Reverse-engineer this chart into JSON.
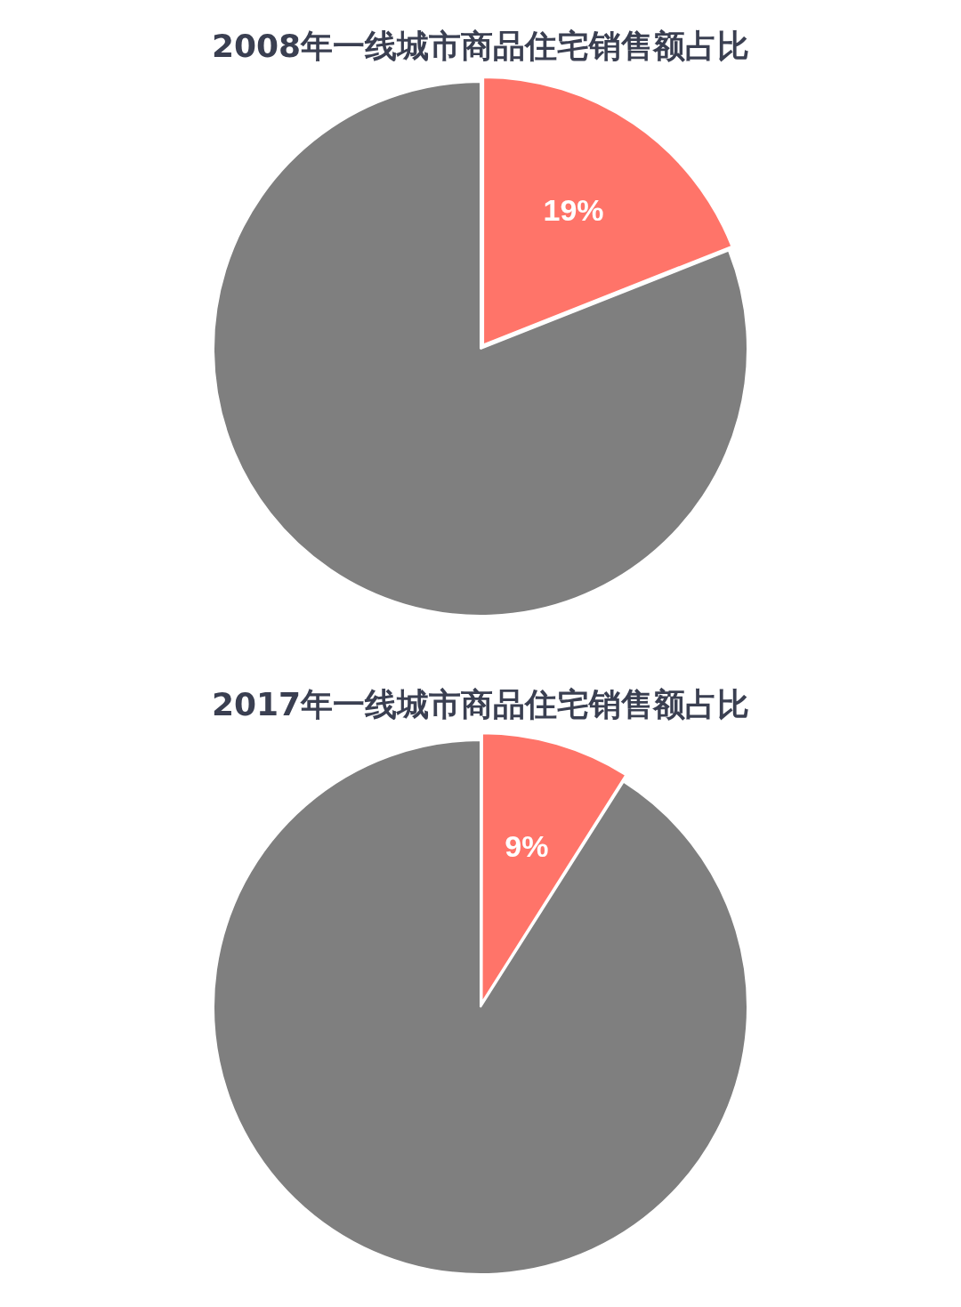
{
  "chart_data": [
    {
      "type": "pie",
      "title": "2008年一线城市商品住宅销售额占比",
      "categories": [
        null,
        null
      ],
      "values": [
        19,
        81
      ],
      "colors": [
        "#ff7469",
        "#7f7f7f"
      ],
      "value_labels": [
        "19%",
        null
      ],
      "legend": false
    },
    {
      "type": "pie",
      "title": "2017年一线城市商品住宅销售额占比",
      "categories": [
        null,
        null
      ],
      "values": [
        9,
        91
      ],
      "colors": [
        "#ff7469",
        "#7f7f7f"
      ],
      "value_labels": [
        "9%",
        null
      ],
      "legend": false
    }
  ]
}
